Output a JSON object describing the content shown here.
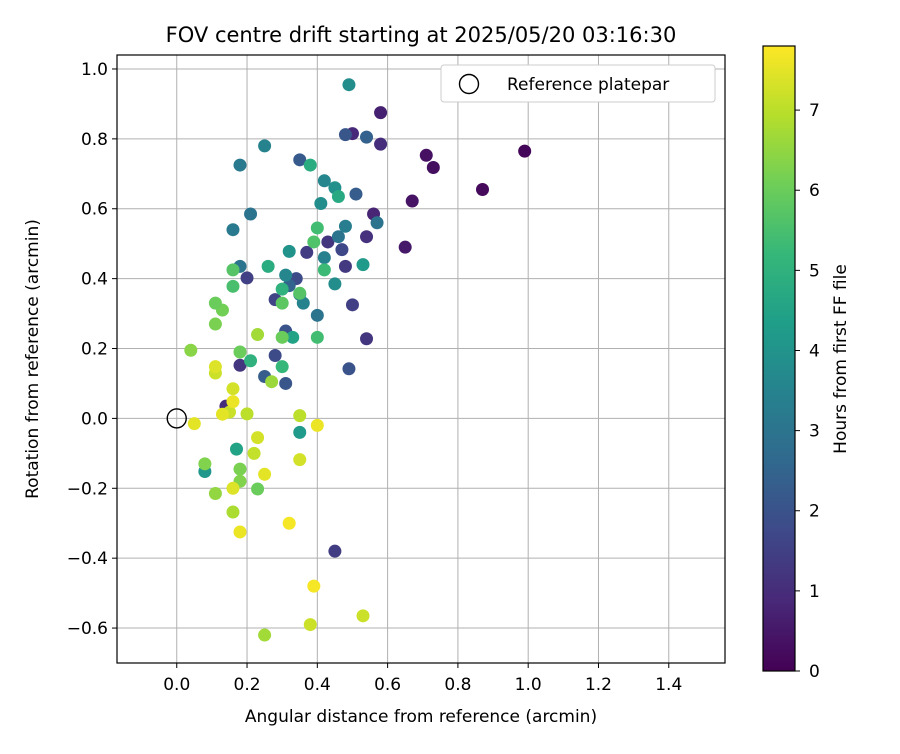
{
  "chart_data": {
    "type": "scatter",
    "title": "FOV centre drift starting at 2025/05/20 03:16:30",
    "xlabel": "Angular distance from reference (arcmin)",
    "ylabel": "Rotation from reference (arcmin)",
    "xlim": [
      -0.17,
      1.56
    ],
    "ylim": [
      -0.7,
      1.04
    ],
    "xticks": [
      0.0,
      0.2,
      0.4,
      0.6,
      0.8,
      1.0,
      1.2,
      1.4
    ],
    "xtick_labels": [
      "0.0",
      "0.2",
      "0.4",
      "0.6",
      "0.8",
      "1.0",
      "1.2",
      "1.4"
    ],
    "yticks": [
      -0.6,
      -0.4,
      -0.2,
      0.0,
      0.2,
      0.4,
      0.6,
      0.8,
      1.0
    ],
    "ytick_labels": [
      "−0.6",
      "−0.4",
      "−0.2",
      "0.0",
      "0.2",
      "0.4",
      "0.6",
      "0.8",
      "1.0"
    ],
    "grid": true,
    "legend": {
      "position": "top-right",
      "label": "Reference platepar"
    },
    "reference_point": {
      "x": 0.0,
      "y": 0.0
    },
    "colorbar": {
      "label": "Hours from first FF file",
      "range": [
        0,
        7.8
      ],
      "ticks": [
        0,
        1,
        2,
        3,
        4,
        5,
        6,
        7
      ],
      "tick_labels": [
        "0",
        "1",
        "2",
        "3",
        "4",
        "5",
        "6",
        "7"
      ],
      "colormap": "viridis",
      "colors": [
        "#440154",
        "#482878",
        "#3e4989",
        "#31688e",
        "#26828e",
        "#1f9e89",
        "#35b779",
        "#6ece58",
        "#b5de2b",
        "#fde725"
      ]
    },
    "points": [
      {
        "x": 0.99,
        "y": 0.765,
        "c": 0.1
      },
      {
        "x": 0.87,
        "y": 0.655,
        "c": 0.2
      },
      {
        "x": 0.73,
        "y": 0.718,
        "c": 0.3
      },
      {
        "x": 0.71,
        "y": 0.753,
        "c": 0.35
      },
      {
        "x": 0.67,
        "y": 0.622,
        "c": 0.4
      },
      {
        "x": 0.65,
        "y": 0.49,
        "c": 0.5
      },
      {
        "x": 0.58,
        "y": 0.875,
        "c": 0.7
      },
      {
        "x": 0.58,
        "y": 0.785,
        "c": 1.0
      },
      {
        "x": 0.56,
        "y": 0.585,
        "c": 0.8
      },
      {
        "x": 0.54,
        "y": 0.52,
        "c": 1.1
      },
      {
        "x": 0.54,
        "y": 0.228,
        "c": 1.2
      },
      {
        "x": 0.5,
        "y": 0.815,
        "c": 0.9
      },
      {
        "x": 0.5,
        "y": 0.325,
        "c": 1.5
      },
      {
        "x": 0.49,
        "y": 0.142,
        "c": 2.0
      },
      {
        "x": 0.48,
        "y": 0.435,
        "c": 1.3
      },
      {
        "x": 0.47,
        "y": 0.483,
        "c": 1.7
      },
      {
        "x": 0.48,
        "y": 0.812,
        "c": 2.1
      },
      {
        "x": 0.51,
        "y": 0.642,
        "c": 2.3
      },
      {
        "x": 0.54,
        "y": 0.805,
        "c": 2.4
      },
      {
        "x": 0.57,
        "y": 0.56,
        "c": 3.0
      },
      {
        "x": 0.45,
        "y": -0.38,
        "c": 1.4
      },
      {
        "x": 0.43,
        "y": 0.505,
        "c": 1.2
      },
      {
        "x": 0.37,
        "y": 0.475,
        "c": 1.4
      },
      {
        "x": 0.35,
        "y": 0.74,
        "c": 2.2
      },
      {
        "x": 0.34,
        "y": 0.4,
        "c": 1.8
      },
      {
        "x": 0.32,
        "y": 0.38,
        "c": 2.5
      },
      {
        "x": 0.31,
        "y": 0.25,
        "c": 2.0
      },
      {
        "x": 0.31,
        "y": 0.1,
        "c": 2.1
      },
      {
        "x": 0.28,
        "y": 0.34,
        "c": 1.6
      },
      {
        "x": 0.28,
        "y": 0.18,
        "c": 1.8
      },
      {
        "x": 0.25,
        "y": 0.12,
        "c": 2.3
      },
      {
        "x": 0.2,
        "y": 0.402,
        "c": 1.5
      },
      {
        "x": 0.18,
        "y": 0.152,
        "c": 1.2
      },
      {
        "x": 0.14,
        "y": 0.035,
        "c": 1.0
      },
      {
        "x": 0.49,
        "y": 0.955,
        "c": 3.8
      },
      {
        "x": 0.25,
        "y": 0.78,
        "c": 3.5
      },
      {
        "x": 0.18,
        "y": 0.725,
        "c": 3.2
      },
      {
        "x": 0.21,
        "y": 0.585,
        "c": 3.0
      },
      {
        "x": 0.16,
        "y": 0.54,
        "c": 3.2
      },
      {
        "x": 0.18,
        "y": 0.435,
        "c": 3.0
      },
      {
        "x": 0.46,
        "y": 0.52,
        "c": 3.0
      },
      {
        "x": 0.48,
        "y": 0.55,
        "c": 3.3
      },
      {
        "x": 0.41,
        "y": 0.615,
        "c": 3.8
      },
      {
        "x": 0.42,
        "y": 0.68,
        "c": 3.6
      },
      {
        "x": 0.45,
        "y": 0.66,
        "c": 3.9
      },
      {
        "x": 0.46,
        "y": 0.635,
        "c": 4.7
      },
      {
        "x": 0.38,
        "y": 0.725,
        "c": 4.8
      },
      {
        "x": 0.32,
        "y": 0.478,
        "c": 4.0
      },
      {
        "x": 0.31,
        "y": 0.41,
        "c": 3.6
      },
      {
        "x": 0.35,
        "y": 0.355,
        "c": 3.3
      },
      {
        "x": 0.36,
        "y": 0.33,
        "c": 3.5
      },
      {
        "x": 0.4,
        "y": 0.295,
        "c": 3.0
      },
      {
        "x": 0.42,
        "y": 0.46,
        "c": 3.4
      },
      {
        "x": 0.45,
        "y": 0.385,
        "c": 3.8
      },
      {
        "x": 0.53,
        "y": 0.44,
        "c": 4.2
      },
      {
        "x": 0.35,
        "y": -0.04,
        "c": 4.2
      },
      {
        "x": 0.17,
        "y": -0.088,
        "c": 4.5
      },
      {
        "x": 0.08,
        "y": -0.152,
        "c": 4.1
      },
      {
        "x": 0.26,
        "y": 0.435,
        "c": 4.8
      },
      {
        "x": 0.3,
        "y": 0.37,
        "c": 5.0
      },
      {
        "x": 0.33,
        "y": 0.232,
        "c": 4.5
      },
      {
        "x": 0.3,
        "y": 0.148,
        "c": 5.2
      },
      {
        "x": 0.21,
        "y": 0.165,
        "c": 5.0
      },
      {
        "x": 0.39,
        "y": 0.505,
        "c": 5.6
      },
      {
        "x": 0.4,
        "y": 0.545,
        "c": 5.4
      },
      {
        "x": 0.42,
        "y": 0.425,
        "c": 5.3
      },
      {
        "x": 0.35,
        "y": 0.358,
        "c": 5.7
      },
      {
        "x": 0.4,
        "y": 0.232,
        "c": 5.4
      },
      {
        "x": 0.16,
        "y": 0.378,
        "c": 5.5
      },
      {
        "x": 0.16,
        "y": 0.425,
        "c": 5.7
      },
      {
        "x": 0.3,
        "y": 0.33,
        "c": 5.8
      },
      {
        "x": 0.3,
        "y": 0.232,
        "c": 6.0
      },
      {
        "x": 0.18,
        "y": 0.19,
        "c": 6.0
      },
      {
        "x": 0.13,
        "y": 0.31,
        "c": 6.1
      },
      {
        "x": 0.11,
        "y": 0.33,
        "c": 6.0
      },
      {
        "x": 0.11,
        "y": 0.27,
        "c": 6.2
      },
      {
        "x": 0.04,
        "y": 0.195,
        "c": 6.4
      },
      {
        "x": 0.23,
        "y": 0.24,
        "c": 6.7
      },
      {
        "x": 0.27,
        "y": 0.105,
        "c": 6.6
      },
      {
        "x": 0.23,
        "y": -0.202,
        "c": 6.0
      },
      {
        "x": 0.18,
        "y": -0.145,
        "c": 6.2
      },
      {
        "x": 0.18,
        "y": -0.18,
        "c": 6.3
      },
      {
        "x": 0.08,
        "y": -0.13,
        "c": 6.3
      },
      {
        "x": 0.11,
        "y": -0.215,
        "c": 6.5
      },
      {
        "x": 0.16,
        "y": -0.268,
        "c": 6.8
      },
      {
        "x": 0.25,
        "y": -0.62,
        "c": 6.7
      },
      {
        "x": 0.22,
        "y": -0.1,
        "c": 7.1
      },
      {
        "x": 0.2,
        "y": 0.013,
        "c": 7.0
      },
      {
        "x": 0.35,
        "y": 0.008,
        "c": 7.0
      },
      {
        "x": 0.15,
        "y": 0.018,
        "c": 7.2
      },
      {
        "x": 0.16,
        "y": 0.085,
        "c": 7.3
      },
      {
        "x": 0.11,
        "y": 0.13,
        "c": 7.2
      },
      {
        "x": 0.11,
        "y": 0.148,
        "c": 7.4
      },
      {
        "x": 0.23,
        "y": -0.055,
        "c": 7.3
      },
      {
        "x": 0.35,
        "y": -0.118,
        "c": 7.3
      },
      {
        "x": 0.38,
        "y": -0.59,
        "c": 7.2
      },
      {
        "x": 0.53,
        "y": -0.565,
        "c": 7.2
      },
      {
        "x": 0.16,
        "y": -0.2,
        "c": 7.4
      },
      {
        "x": 0.05,
        "y": -0.015,
        "c": 7.5
      },
      {
        "x": 0.13,
        "y": 0.012,
        "c": 7.5
      },
      {
        "x": 0.16,
        "y": 0.048,
        "c": 7.6
      },
      {
        "x": 0.25,
        "y": -0.16,
        "c": 7.5
      },
      {
        "x": 0.18,
        "y": -0.325,
        "c": 7.6
      },
      {
        "x": 0.32,
        "y": -0.3,
        "c": 7.7
      },
      {
        "x": 0.39,
        "y": -0.48,
        "c": 7.7
      },
      {
        "x": 0.4,
        "y": -0.02,
        "c": 7.6
      }
    ]
  }
}
